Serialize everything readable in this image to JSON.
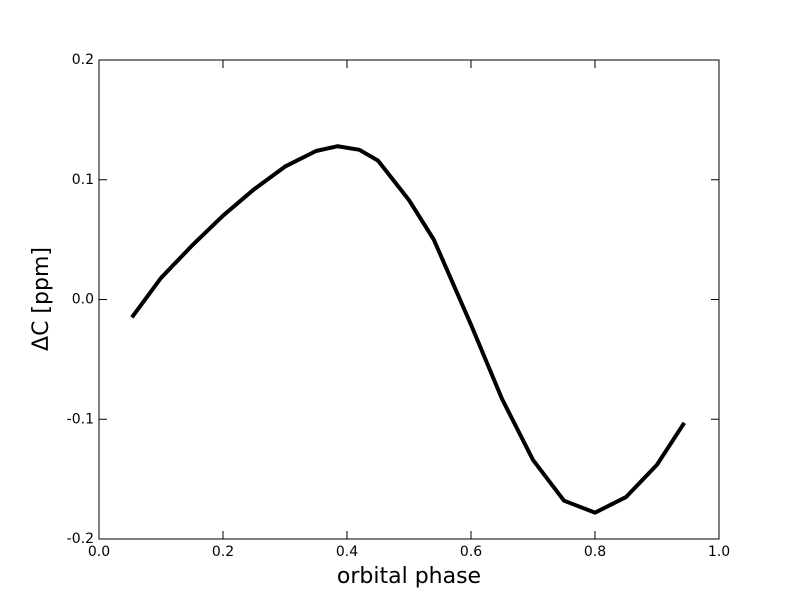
{
  "chart_data": {
    "type": "line",
    "x_label": "orbital phase",
    "y_label": "ΔC [ppm]",
    "x": [
      0.053,
      0.1,
      0.15,
      0.2,
      0.25,
      0.3,
      0.35,
      0.385,
      0.42,
      0.45,
      0.5,
      0.54,
      0.6,
      0.65,
      0.7,
      0.75,
      0.8,
      0.85,
      0.9,
      0.944
    ],
    "series": [
      {
        "color": "#000000",
        "values": [
          -0.015,
          0.018,
          0.045,
          0.07,
          0.092,
          0.111,
          0.124,
          0.128,
          0.125,
          0.116,
          0.083,
          0.05,
          -0.021,
          -0.083,
          -0.134,
          -0.168,
          -0.178,
          -0.165,
          -0.138,
          -0.103
        ]
      }
    ],
    "xlim": [
      0,
      1
    ],
    "xticks": [
      {
        "value": 0,
        "label": "0.0"
      },
      0.2,
      0.4,
      0.6,
      0.8,
      {
        "value": 1,
        "label": "1.0"
      }
    ],
    "ylim": [
      -0.2,
      0.2
    ],
    "yticks": [
      -0.2,
      -0.1,
      {
        "value": 0,
        "label": "0.0"
      },
      0.1,
      0.2
    ]
  }
}
